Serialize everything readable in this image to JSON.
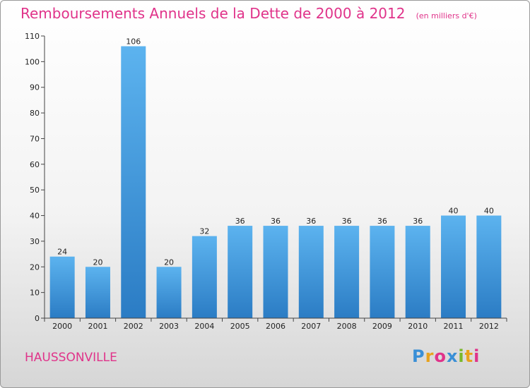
{
  "chart_data": {
    "type": "bar",
    "title": "Remboursements Annuels de la Dette de 2000 à 2012",
    "subtitle": "(en milliers d'€)",
    "categories": [
      "2000",
      "2001",
      "2002",
      "2003",
      "2004",
      "2005",
      "2006",
      "2007",
      "2008",
      "2009",
      "2010",
      "2011",
      "2012"
    ],
    "values": [
      24,
      20,
      106,
      20,
      32,
      36,
      36,
      36,
      36,
      36,
      36,
      40,
      40
    ],
    "yticks": [
      0,
      10,
      20,
      30,
      40,
      50,
      60,
      70,
      80,
      90,
      100,
      110
    ],
    "ylim": [
      0,
      110
    ],
    "grid": false,
    "xlabel": "",
    "ylabel": "",
    "bar_color": "#3a8fd6"
  },
  "footer": {
    "place": "HAUSSONVILLE",
    "logo": "Proxiti"
  }
}
